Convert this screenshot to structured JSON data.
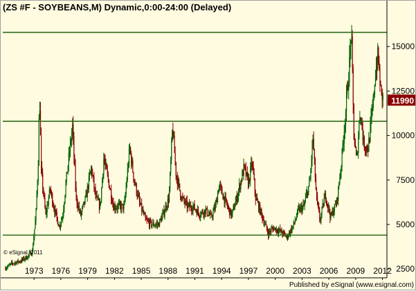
{
  "title": "(ZS #F - SOYBEANS,M) Dynamic,0:00-24:00 (Delayed)",
  "watermark": "© eSignal, 2011",
  "footer": "Published by eSignal (www.esignal.com)",
  "colors": {
    "background": "#fffbe0",
    "up_candle": "#006400",
    "down_candle": "#8b0000",
    "horizontal_lines": "#2e6b1e",
    "last_price_label_bg": "#8b0000",
    "last_price_label_text": "#ffffff"
  },
  "chart_data": {
    "type": "candlestick",
    "interval": "monthly",
    "symbol": "ZS #F",
    "name": "SOYBEANS",
    "x_range": [
      1969.5,
      2012.5
    ],
    "y_range": [
      2000,
      16800
    ],
    "x_ticks": [
      1973,
      1976,
      1979,
      1982,
      1985,
      1988,
      1991,
      1994,
      1997,
      2000,
      2003,
      2006,
      2009,
      2012
    ],
    "y_ticks": [
      2500,
      5000,
      7500,
      10000,
      12500,
      15000
    ],
    "y_tick_labels": [
      "2500",
      "5000",
      "7500",
      "10000",
      "12500",
      "15000"
    ],
    "last_price": 11990,
    "last_price_label": "11990",
    "horizontal_lines": [
      15800,
      10800,
      4400
    ],
    "grid": false,
    "price_path": [
      [
        1969.8,
        2550
      ],
      [
        1970.5,
        2800
      ],
      [
        1971.5,
        2950
      ],
      [
        1972.3,
        3200
      ],
      [
        1972.8,
        3500
      ],
      [
        1973.2,
        5500
      ],
      [
        1973.5,
        9000
      ],
      [
        1973.6,
        12500
      ],
      [
        1973.8,
        8000
      ],
      [
        1974.3,
        5500
      ],
      [
        1974.8,
        7000
      ],
      [
        1975.2,
        6000
      ],
      [
        1975.8,
        4900
      ],
      [
        1976.2,
        5500
      ],
      [
        1976.6,
        7500
      ],
      [
        1977.3,
        10500
      ],
      [
        1977.7,
        6500
      ],
      [
        1978.2,
        5500
      ],
      [
        1978.8,
        6500
      ],
      [
        1979.4,
        8200
      ],
      [
        1979.9,
        6500
      ],
      [
        1980.4,
        6000
      ],
      [
        1980.8,
        8700
      ],
      [
        1981.3,
        7500
      ],
      [
        1981.9,
        6000
      ],
      [
        1982.5,
        6000
      ],
      [
        1983.1,
        6000
      ],
      [
        1983.7,
        9300
      ],
      [
        1984.2,
        7500
      ],
      [
        1984.8,
        6200
      ],
      [
        1985.5,
        5200
      ],
      [
        1986.2,
        5000
      ],
      [
        1986.9,
        5000
      ],
      [
        1987.4,
        5500
      ],
      [
        1988.1,
        6500
      ],
      [
        1988.5,
        10500
      ],
      [
        1988.9,
        7800
      ],
      [
        1989.5,
        6500
      ],
      [
        1990.2,
        6000
      ],
      [
        1990.8,
        6000
      ],
      [
        1991.5,
        5600
      ],
      [
        1992.2,
        5800
      ],
      [
        1992.8,
        5400
      ],
      [
        1993.3,
        6000
      ],
      [
        1993.7,
        7200
      ],
      [
        1994.4,
        6300
      ],
      [
        1995.1,
        5500
      ],
      [
        1995.7,
        6500
      ],
      [
        1996.5,
        8200
      ],
      [
        1997.0,
        7300
      ],
      [
        1997.4,
        8500
      ],
      [
        1997.8,
        6500
      ],
      [
        1998.5,
        5500
      ],
      [
        1999.2,
        4500
      ],
      [
        1999.8,
        4800
      ],
      [
        2000.6,
        4600
      ],
      [
        2001.3,
        4300
      ],
      [
        2002.0,
        4900
      ],
      [
        2002.6,
        5800
      ],
      [
        2003.2,
        6000
      ],
      [
        2003.9,
        7500
      ],
      [
        2004.2,
        10000
      ],
      [
        2004.6,
        6500
      ],
      [
        2005.0,
        5200
      ],
      [
        2005.6,
        6700
      ],
      [
        2006.2,
        5400
      ],
      [
        2006.9,
        6300
      ],
      [
        2007.4,
        8500
      ],
      [
        2007.9,
        11500
      ],
      [
        2008.3,
        14000
      ],
      [
        2008.5,
        16000
      ],
      [
        2008.8,
        10000
      ],
      [
        2009.1,
        8500
      ],
      [
        2009.5,
        11500
      ],
      [
        2009.9,
        9500
      ],
      [
        2010.4,
        9300
      ],
      [
        2010.9,
        11500
      ],
      [
        2011.2,
        13500
      ],
      [
        2011.5,
        14500
      ],
      [
        2011.8,
        12500
      ],
      [
        2012.1,
        11990
      ]
    ]
  }
}
